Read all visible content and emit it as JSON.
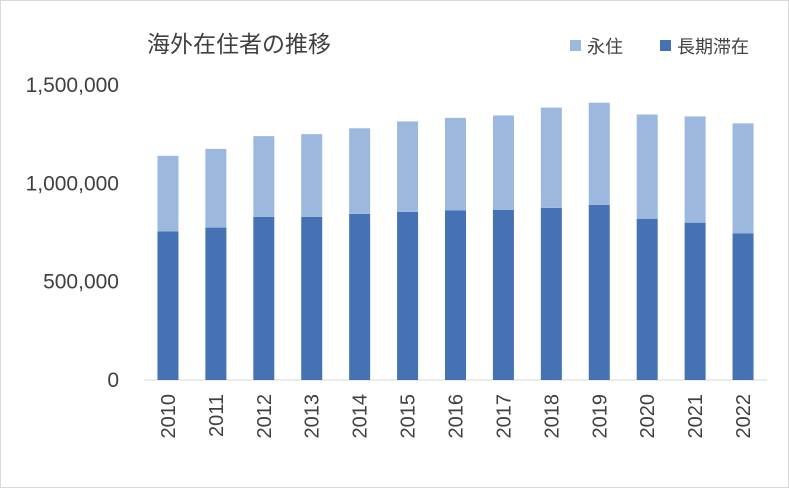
{
  "chart_data": {
    "type": "bar",
    "stacked": true,
    "title": "海外在住者の推移",
    "xlabel": "",
    "ylabel": "",
    "categories": [
      "2010",
      "2011",
      "2012",
      "2013",
      "2014",
      "2015",
      "2016",
      "2017",
      "2018",
      "2019",
      "2020",
      "2021",
      "2022"
    ],
    "series": [
      {
        "name": "長期滞在",
        "color": "#4472b4",
        "values": [
          755000,
          775000,
          830000,
          830000,
          845000,
          855000,
          863000,
          865000,
          875000,
          890000,
          820000,
          800000,
          745000
        ]
      },
      {
        "name": "永住",
        "color": "#9cb8de",
        "values": [
          385000,
          400000,
          410000,
          420000,
          435000,
          460000,
          470000,
          480000,
          510000,
          520000,
          530000,
          540000,
          560000
        ]
      }
    ],
    "legend_order": [
      "永住",
      "長期滞在"
    ],
    "legend_position": "top-right",
    "ylim": [
      0,
      1500000
    ],
    "yticks": [
      "0",
      "500,000",
      "1,000,000",
      "1,500,000"
    ],
    "grid": false
  }
}
